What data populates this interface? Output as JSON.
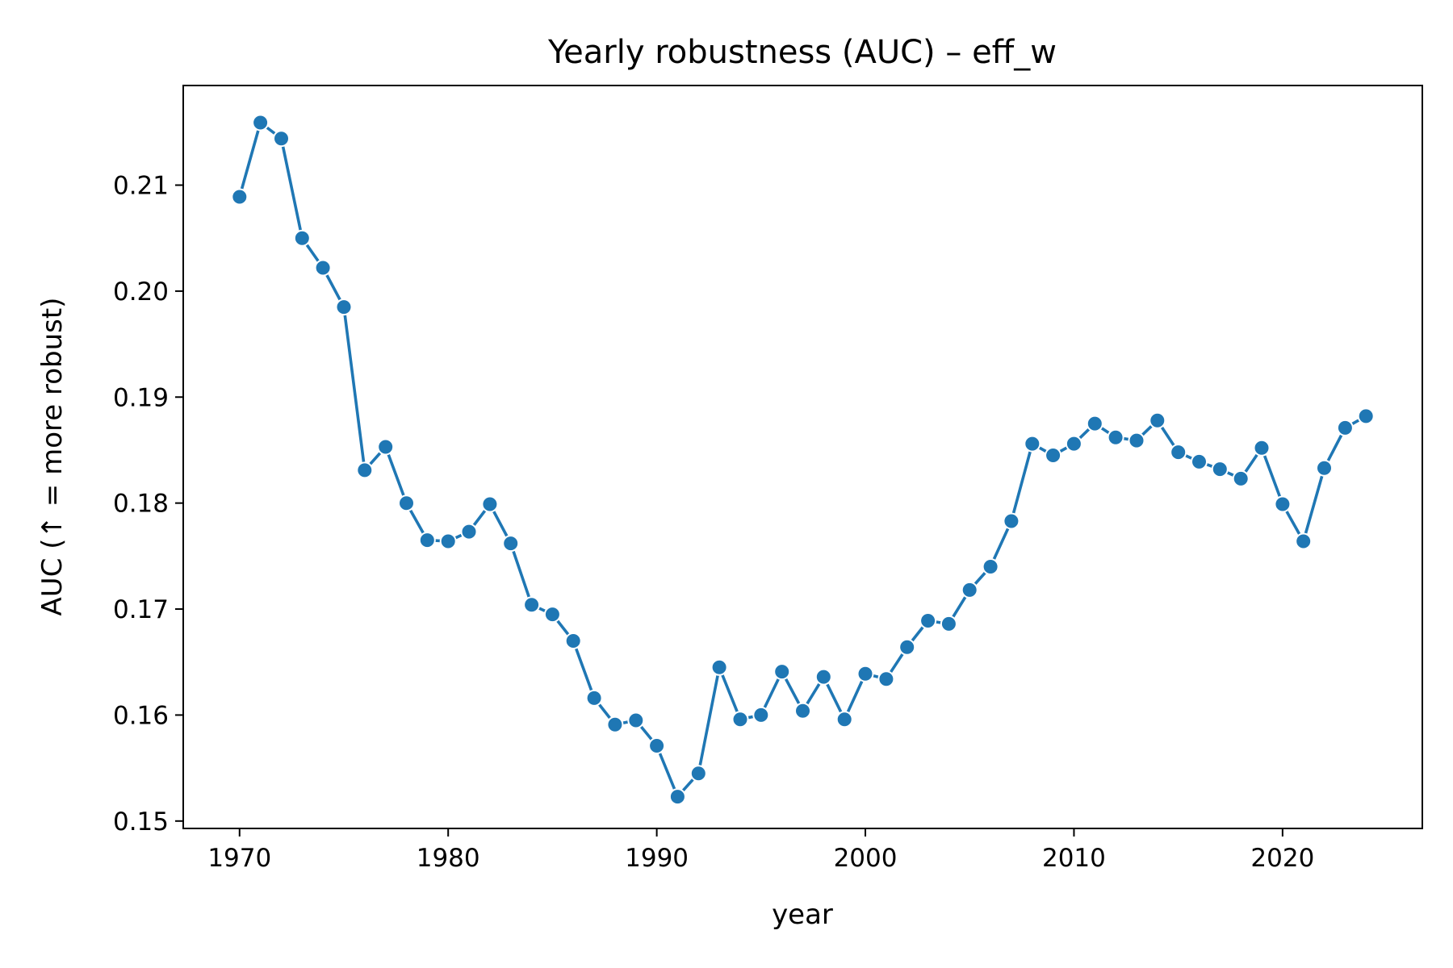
{
  "chart_data": {
    "type": "line",
    "title": "Yearly robustness (AUC) – eff_w",
    "xlabel": "year",
    "ylabel": "AUC (↑ = more robust)",
    "xlim": [
      1967.3,
      2026.7
    ],
    "ylim": [
      0.1493,
      0.2194
    ],
    "xticks": [
      1970,
      1980,
      1990,
      2000,
      2010,
      2020
    ],
    "xtick_labels": [
      "1970",
      "1980",
      "1990",
      "2000",
      "2010",
      "2020"
    ],
    "yticks": [
      0.15,
      0.16,
      0.17,
      0.18,
      0.19,
      0.2,
      0.21
    ],
    "ytick_labels": [
      "0.15",
      "0.16",
      "0.17",
      "0.18",
      "0.19",
      "0.20",
      "0.21"
    ],
    "grid": false,
    "legend": false,
    "series_color": "#1f77b4",
    "marker": "circle",
    "x": [
      1970,
      1971,
      1972,
      1973,
      1974,
      1975,
      1976,
      1977,
      1978,
      1979,
      1980,
      1981,
      1982,
      1983,
      1984,
      1985,
      1986,
      1987,
      1988,
      1989,
      1990,
      1991,
      1992,
      1993,
      1994,
      1995,
      1996,
      1997,
      1998,
      1999,
      2000,
      2001,
      2002,
      2003,
      2004,
      2005,
      2006,
      2007,
      2008,
      2009,
      2010,
      2011,
      2012,
      2013,
      2014,
      2015,
      2016,
      2017,
      2018,
      2019,
      2020,
      2021,
      2022,
      2023,
      2024
    ],
    "y": [
      0.2089,
      0.2159,
      0.2144,
      0.205,
      0.2022,
      0.1985,
      0.1831,
      0.1853,
      0.18,
      0.1765,
      0.1764,
      0.1773,
      0.1799,
      0.1762,
      0.1704,
      0.1695,
      0.167,
      0.1616,
      0.1591,
      0.1595,
      0.1571,
      0.1523,
      0.1545,
      0.1645,
      0.1596,
      0.16,
      0.1641,
      0.1604,
      0.1636,
      0.1596,
      0.1639,
      0.1634,
      0.1664,
      0.1689,
      0.1686,
      0.1718,
      0.174,
      0.1783,
      0.1856,
      0.1845,
      0.1856,
      0.1875,
      0.1862,
      0.1859,
      0.1878,
      0.1848,
      0.1839,
      0.1832,
      0.1823,
      0.1852,
      0.1799,
      0.1764,
      0.1833,
      0.1871,
      0.1882
    ]
  }
}
